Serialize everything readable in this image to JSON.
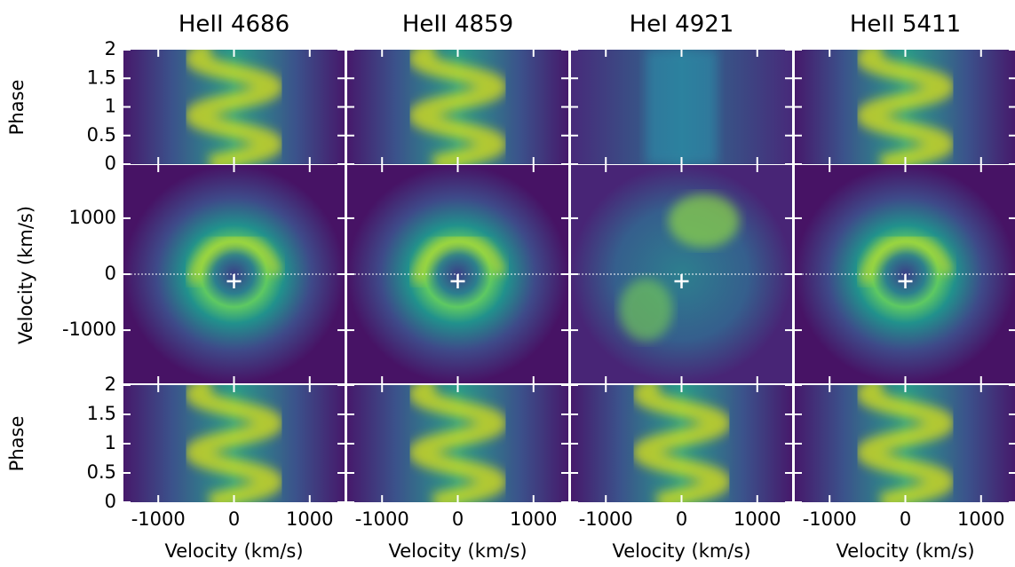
{
  "chart_data": {
    "type": "trailed-spectra-and-tomograms",
    "columns": [
      "HeII 4686",
      "HeII 4859",
      "HeI 4921",
      "HeII 5411"
    ],
    "xlabel": "Velocity (km/s)",
    "xlim": [
      -1460,
      1460
    ],
    "xticks": [
      -1000,
      0,
      1000
    ],
    "phase_label": "Phase",
    "phase_lim": [
      0,
      2
    ],
    "phase_ticks": [
      0,
      0.5,
      1,
      1.5,
      2
    ],
    "tomogram_label": "Velocity (km/s)",
    "vlim": [
      -1950,
      1950
    ],
    "vticks": [
      -1000,
      0,
      1000
    ]
  }
}
